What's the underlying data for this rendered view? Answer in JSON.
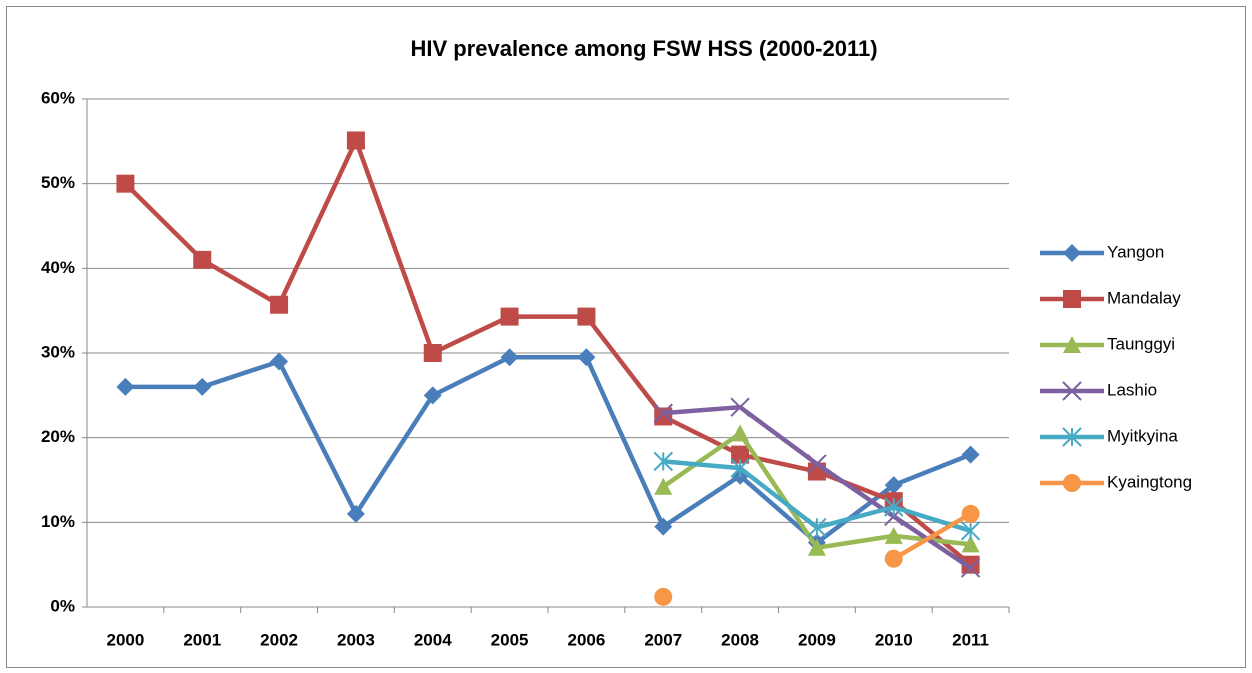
{
  "chart_data": {
    "type": "line",
    "title": "HIV prevalence among FSW HSS (2000-2011)",
    "categories": [
      "2000",
      "2001",
      "2002",
      "2003",
      "2004",
      "2005",
      "2006",
      "2007",
      "2008",
      "2009",
      "2010",
      "2011"
    ],
    "ylim": [
      0,
      60
    ],
    "yticks": [
      {
        "value": 0,
        "label": "0%"
      },
      {
        "value": 10,
        "label": "10%"
      },
      {
        "value": 20,
        "label": "20%"
      },
      {
        "value": 30,
        "label": "30%"
      },
      {
        "value": 40,
        "label": "40%"
      },
      {
        "value": 50,
        "label": "50%"
      },
      {
        "value": 60,
        "label": "60%"
      }
    ],
    "grid": true,
    "legend": "right",
    "series": [
      {
        "name": "Yangon",
        "color": "#4a7ebb",
        "marker": "diamond",
        "values": [
          26,
          26,
          29,
          11,
          25,
          29.5,
          29.5,
          9.5,
          15.5,
          7.6,
          14.4,
          18
        ]
      },
      {
        "name": "Mandalay",
        "color": "#be4b48",
        "marker": "square",
        "values": [
          50,
          41,
          35.7,
          55.1,
          30,
          34.3,
          34.3,
          22.5,
          18,
          16,
          12.5,
          5
        ]
      },
      {
        "name": "Taunggyi",
        "color": "#98b954",
        "marker": "triangle",
        "values": [
          null,
          null,
          null,
          null,
          null,
          null,
          null,
          14.2,
          20.5,
          7,
          8.4,
          7.4
        ]
      },
      {
        "name": "Lashio",
        "color": "#7d60a0",
        "marker": "x",
        "values": [
          null,
          null,
          null,
          null,
          null,
          null,
          null,
          22.9,
          23.6,
          16.9,
          10.7,
          4.6
        ]
      },
      {
        "name": "Myitkyina",
        "color": "#46aac5",
        "marker": "star",
        "values": [
          null,
          null,
          null,
          null,
          null,
          null,
          null,
          17.2,
          16.4,
          9.4,
          11.8,
          9
        ]
      },
      {
        "name": "Kyaingtong",
        "color": "#f79646",
        "marker": "circle",
        "values": [
          null,
          null,
          null,
          null,
          null,
          null,
          null,
          1.2,
          null,
          null,
          5.7,
          11
        ]
      }
    ]
  }
}
